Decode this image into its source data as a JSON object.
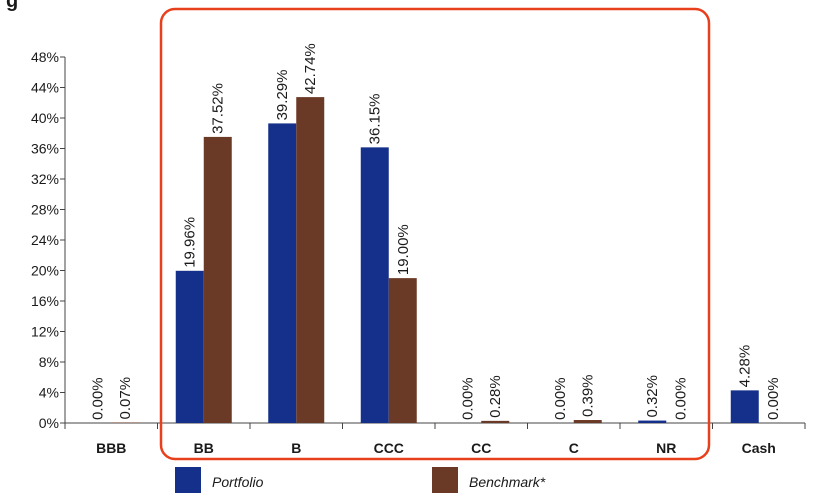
{
  "chart_data": {
    "type": "bar",
    "categories": [
      "BBB",
      "BB",
      "B",
      "CCC",
      "CC",
      "C",
      "NR",
      "Cash"
    ],
    "series": [
      {
        "name": "Portfolio",
        "values": [
          0.0,
          19.96,
          39.29,
          36.15,
          0.0,
          0.0,
          0.32,
          4.28
        ],
        "labels": [
          "0.00%",
          "19.96%",
          "39.29%",
          "36.15%",
          "0.00%",
          "0.00%",
          "0.32%",
          "4.28%"
        ],
        "color": "#14308a"
      },
      {
        "name": "Benchmark*",
        "values": [
          0.07,
          37.52,
          42.74,
          19.0,
          0.28,
          0.39,
          0.0,
          0.0
        ],
        "labels": [
          "0.07%",
          "37.52%",
          "42.74%",
          "19.00%",
          "0.28%",
          "0.39%",
          "0.00%",
          "0.00%"
        ],
        "color": "#6b3a26"
      }
    ],
    "title": "",
    "xlabel": "",
    "ylabel": "",
    "ylim": [
      0,
      48
    ],
    "yticks": [
      "0%",
      "4%",
      "8%",
      "12%",
      "16%",
      "20%",
      "24%",
      "28%",
      "32%",
      "36%",
      "40%",
      "44%",
      "48%"
    ],
    "grid": false,
    "legend_position": "bottom",
    "highlight_box_color": "#e8401c"
  }
}
